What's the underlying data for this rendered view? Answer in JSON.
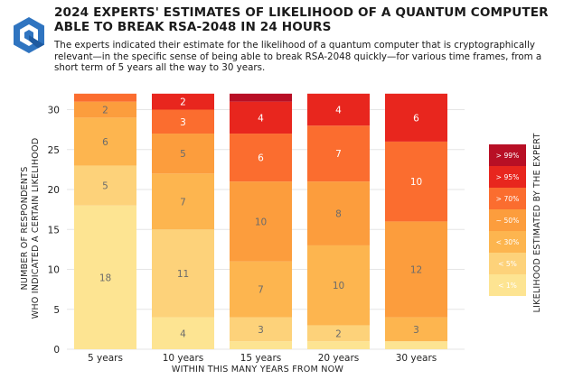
{
  "header": {
    "title": "2024 EXPERTS' ESTIMATES OF LIKELIHOOD OF A QUANTUM COMPUTER ABLE TO BREAK RSA-2048 IN 24 HOURS",
    "subtitle": "The experts indicated their estimate for the likelihood of a quantum computer that is cryptographically relevant—in the specific sense of being able to break RSA-2048 quickly—for various time frames, from a short term of 5 years all the way to 30 years."
  },
  "chart_data": {
    "type": "bar",
    "stacked": true,
    "categories": [
      "5 years",
      "10 years",
      "15 years",
      "20 years",
      "30 years"
    ],
    "series": [
      {
        "name": "< 1%",
        "color": "#fde492",
        "values": [
          18,
          4,
          1,
          1,
          1
        ]
      },
      {
        "name": "< 5%",
        "color": "#fdd27a",
        "values": [
          5,
          11,
          3,
          2,
          0
        ]
      },
      {
        "name": "< 30%",
        "color": "#fdb54f",
        "values": [
          6,
          7,
          7,
          10,
          3
        ]
      },
      {
        "name": "~ 50%",
        "color": "#fc9d3d",
        "values": [
          2,
          5,
          10,
          8,
          12
        ]
      },
      {
        "name": "> 70%",
        "color": "#fb6d2f",
        "values": [
          1,
          3,
          6,
          7,
          10
        ]
      },
      {
        "name": "> 95%",
        "color": "#e8261e",
        "values": [
          0,
          2,
          4,
          4,
          6
        ]
      },
      {
        "name": "> 99%",
        "color": "#b80f25",
        "values": [
          0,
          0,
          1,
          0,
          0
        ]
      }
    ],
    "segment_labels": [
      [
        "18",
        "5",
        "6",
        "2",
        "",
        "",
        ""
      ],
      [
        "4",
        "11",
        "7",
        "5",
        "3",
        "2",
        ""
      ],
      [
        "",
        "3",
        "7",
        "10",
        "6",
        "4",
        ""
      ],
      [
        "",
        "2",
        "10",
        "8",
        "7",
        "4",
        ""
      ],
      [
        "",
        "",
        "3",
        "12",
        "10",
        "6",
        ""
      ]
    ],
    "xlabel": "WITHIN THIS MANY YEARS FROM NOW",
    "ylabel": [
      "NUMBER OF RESPONDENTS",
      "WHO INDICATED A CERTAIN LIKELIHOOD"
    ],
    "yticks": [
      0,
      5,
      10,
      15,
      20,
      25,
      30
    ],
    "ylim": [
      0,
      32
    ],
    "legend_title": "LIKELIHOOD ESTIMATED BY THE EXPERT",
    "legend_position": "right",
    "grid": true
  }
}
